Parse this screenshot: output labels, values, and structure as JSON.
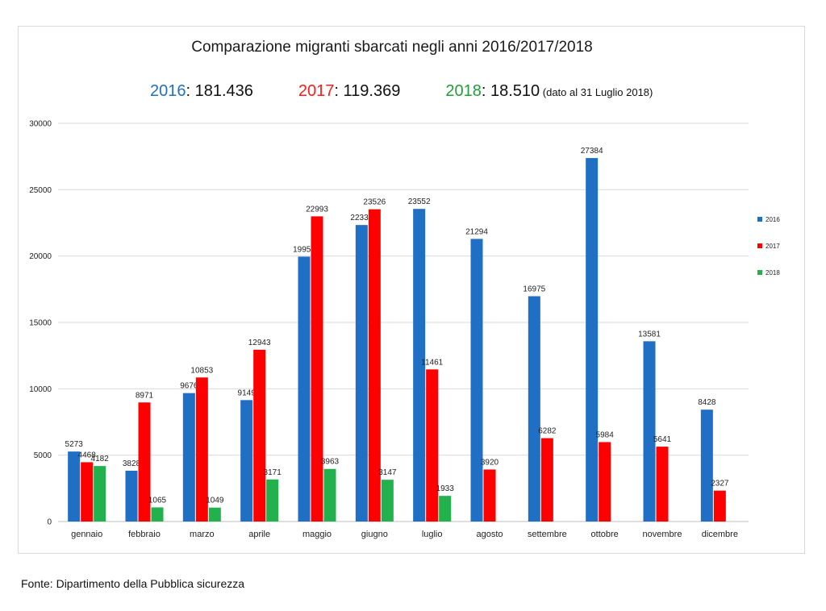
{
  "chart_data": {
    "type": "bar",
    "title": "Comparazione migranti sbarcati negli anni 2016/2017/2018",
    "categories": [
      "gennaio",
      "febbraio",
      "marzo",
      "aprile",
      "maggio",
      "giugno",
      "luglio",
      "agosto",
      "settembre",
      "ottobre",
      "novembre",
      "dicembre"
    ],
    "series": [
      {
        "name": "2016",
        "color": "#1f6fc5",
        "values": [
          5273,
          3828,
          9676,
          9149,
          19957,
          22339,
          23552,
          21294,
          16975,
          27384,
          13581,
          8428
        ]
      },
      {
        "name": "2017",
        "color": "#ff0000",
        "values": [
          4468,
          8971,
          10853,
          12943,
          22993,
          23526,
          11461,
          3920,
          6282,
          5984,
          5641,
          2327
        ]
      },
      {
        "name": "2018",
        "color": "#22b14c",
        "values": [
          4182,
          1065,
          1049,
          3171,
          3963,
          3147,
          1933,
          null,
          null,
          null,
          null,
          null
        ]
      }
    ],
    "yticks": [
      "0",
      "5000",
      "10000",
      "15000",
      "20000",
      "25000",
      "30000"
    ],
    "ylim": [
      0,
      30000
    ],
    "grid": true,
    "legend": "right"
  },
  "totals": {
    "y2016_label": "2016",
    "y2016_value": ": 181.436",
    "y2017_label": "2017",
    "y2017_value": ": 119.369",
    "y2018_label": "2018",
    "y2018_value": ": 18.510",
    "y2018_note": " (dato al 31 Luglio 2018)"
  },
  "source": "Fonte: Dipartimento della Pubblica sicurezza"
}
